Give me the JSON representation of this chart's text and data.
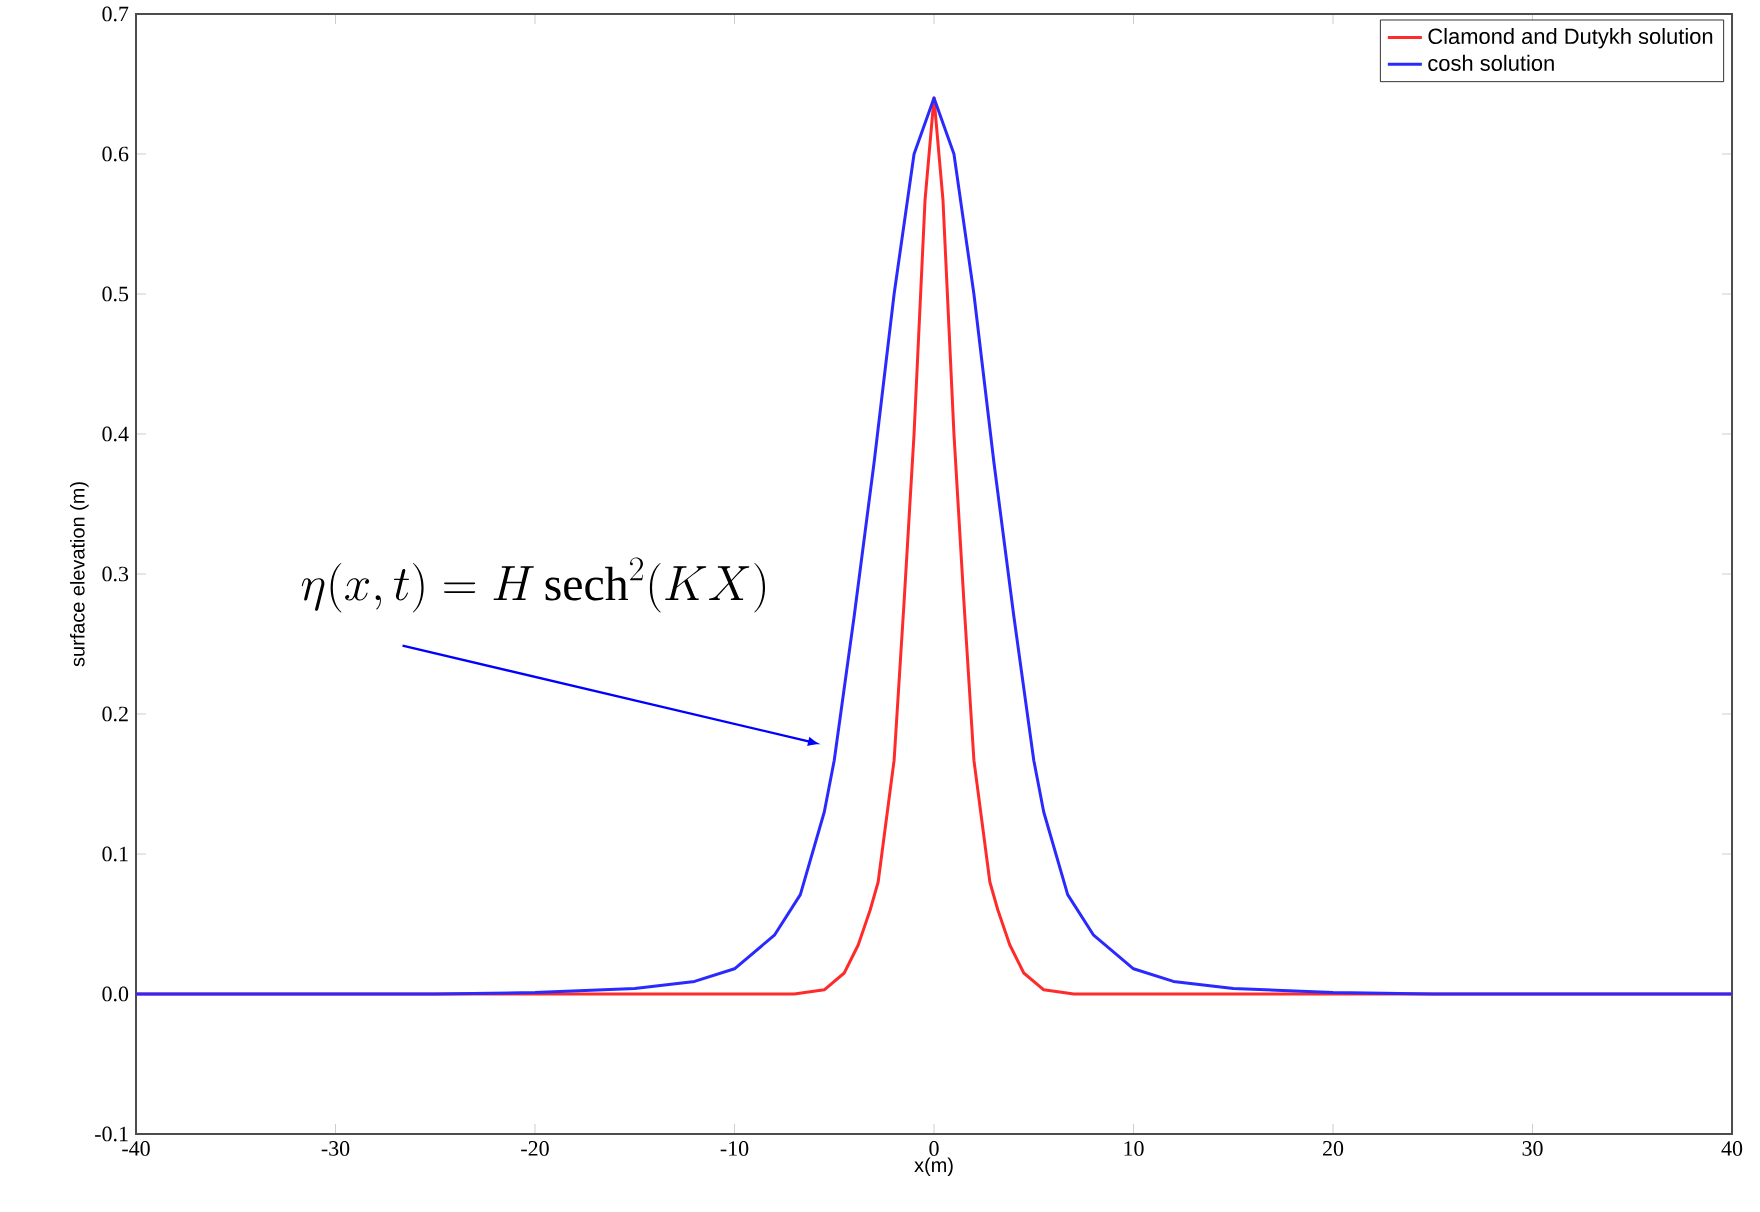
{
  "chart_data": {
    "type": "line",
    "xlabel": "x(m)",
    "ylabel": "surface elevation (m)",
    "xlim": [
      -40,
      40
    ],
    "ylim": [
      -0.1,
      0.7
    ],
    "xticks": [
      -40,
      -30,
      -20,
      -10,
      0,
      10,
      20,
      30,
      40
    ],
    "yticks": [
      -0.1,
      {
        "value": 0,
        "label": "0.0"
      },
      0.1,
      0.2,
      0.3,
      0.4,
      0.5,
      0.6,
      0.7
    ],
    "legend": "top right",
    "annotations": [
      "\\eta(x,t) = H\\,\\mathrm{sech}^{2}(KX)"
    ],
    "series": [
      {
        "name": "Clamond and Dutykh solution",
        "color": "#ff2a2a",
        "x": [
          -40,
          -20,
          -10,
          -7,
          -5.5,
          -4.5,
          -3.8,
          -3.2,
          -2.8,
          -2,
          -1.5,
          -1,
          -0.45,
          0,
          0.45,
          1,
          1.5,
          2,
          2.8,
          3.2,
          3.8,
          4.5,
          5.5,
          7,
          10,
          20,
          40
        ],
        "values": [
          0,
          0,
          0,
          0,
          0.003,
          0.015,
          0.035,
          0.06,
          0.08,
          0.167,
          0.28,
          0.4,
          0.567,
          0.64,
          0.567,
          0.4,
          0.28,
          0.167,
          0.08,
          0.06,
          0.035,
          0.015,
          0.003,
          0,
          0,
          0,
          0
        ]
      },
      {
        "name": "cosh solution",
        "color": "#2a2aff",
        "x": [
          -40,
          -25,
          -20,
          -15,
          -12,
          -10,
          -8,
          -6.7,
          -5.5,
          -5,
          -4,
          -3,
          -2,
          -1,
          0,
          1,
          2,
          3,
          4,
          5,
          5.5,
          6.7,
          8,
          10,
          12,
          15,
          20,
          25,
          40
        ],
        "values": [
          0,
          0,
          0.001,
          0.004,
          0.009,
          0.018,
          0.042,
          0.071,
          0.13,
          0.167,
          0.27,
          0.38,
          0.5,
          0.6,
          0.64,
          0.6,
          0.5,
          0.38,
          0.27,
          0.167,
          0.13,
          0.071,
          0.042,
          0.018,
          0.009,
          0.004,
          0.001,
          0,
          0
        ]
      }
    ]
  }
}
